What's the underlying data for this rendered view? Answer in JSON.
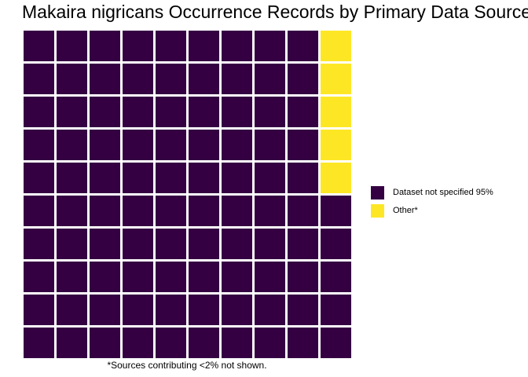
{
  "chart_data": {
    "type": "waffle",
    "title": "Makaira nigricans Occurrence Records by Primary Data Source",
    "caption": "*Sources contributing <2% not shown.",
    "grid": {
      "rows": 10,
      "columns": 10
    },
    "categories": [
      {
        "name": "Dataset not specified",
        "label": "Dataset not specified 95%",
        "percent": 95,
        "squares": 95,
        "color": "#340042"
      },
      {
        "name": "Other*",
        "label": "Other*",
        "percent": 5,
        "squares": 5,
        "color": "#FDE725"
      }
    ],
    "fill_order": "column-major from bottom-left, bottom to top",
    "legend_position": "right"
  }
}
